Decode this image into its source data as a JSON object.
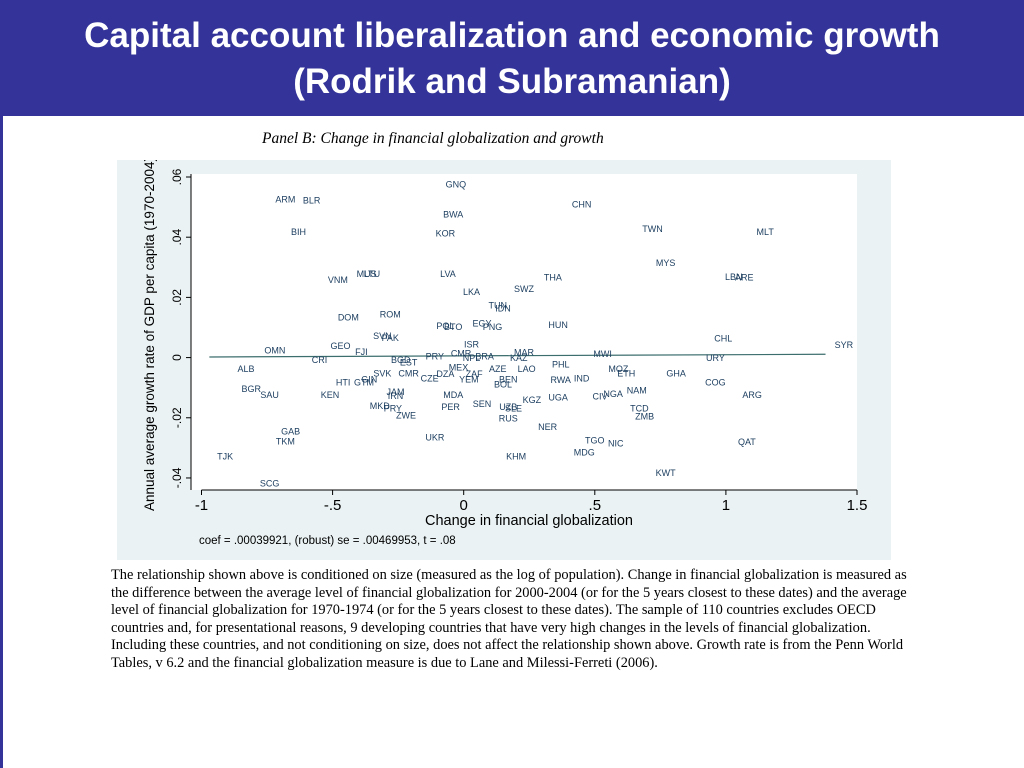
{
  "slide": {
    "title_line1": "Capital account liberalization and economic growth",
    "title_line2": "(Rodrik and Subramanian)"
  },
  "panel_title": "Panel B: Change in financial globalization and growth",
  "caption": "The relationship shown above is conditioned on size (measured as the log of population). Change in financial globalization is measured as the difference between the average level of financial globalization for 2000-2004 (or for the 5 years closest to these dates) and the average level of financial globalization for 1970-1974 (or for the 5 years closest to these dates). The sample of 110 countries excludes OECD countries and, for presentational reasons, 9 developing countries that have very high changes in the levels of financial globalization. Including these countries, and not conditioning on size, does not affect the relationship shown above. Growth rate is from the Penn World Tables, v 6.2 and the financial globalization measure is due to Lane and Milessi-Ferreti (2006).",
  "colors": {
    "header_bg": "#333399",
    "header_text": "#ffffff",
    "plot_bg": "#eaf2f3",
    "fit_line": "#3d6e6e",
    "label": "#1a3c5e"
  },
  "chart_data": {
    "type": "scatter",
    "xlabel": "Change in financial globalization",
    "ylabel": "Annual average growth rate of GDP per capita (1970-2004)",
    "note": "coef = .00039921, (robust) se = .00469953, t = .08",
    "xlim": [
      -1.04,
      1.5
    ],
    "ylim": [
      -0.044,
      0.061
    ],
    "xticks": [
      -1,
      -0.5,
      0,
      0.5,
      1,
      1.5
    ],
    "xtick_labels": [
      "-1",
      "-.5",
      "0",
      ".5",
      "1",
      "1.5"
    ],
    "yticks": [
      -0.04,
      -0.02,
      0,
      0.02,
      0.04,
      0.06
    ],
    "ytick_labels": [
      "-.04",
      "-.02",
      "0",
      ".02",
      ".04",
      ".06"
    ],
    "fit_line": {
      "x": [
        -0.97,
        1.38
      ],
      "y": [
        0.0002,
        0.0011
      ]
    },
    "points": [
      {
        "label": "GNQ",
        "x": -0.03,
        "y": 0.0575
      },
      {
        "label": "ARM",
        "x": -0.68,
        "y": 0.0525
      },
      {
        "label": "BLR",
        "x": -0.58,
        "y": 0.0522
      },
      {
        "label": "CHN",
        "x": 0.45,
        "y": 0.0508
      },
      {
        "label": "BWA",
        "x": -0.04,
        "y": 0.0475
      },
      {
        "label": "TWN",
        "x": 0.72,
        "y": 0.0427
      },
      {
        "label": "BIH",
        "x": -0.63,
        "y": 0.0417
      },
      {
        "label": "KOR",
        "x": -0.07,
        "y": 0.0413
      },
      {
        "label": "MLT",
        "x": 1.15,
        "y": 0.0417
      },
      {
        "label": "MYS",
        "x": 0.77,
        "y": 0.0315
      },
      {
        "label": "MUS",
        "x": -0.37,
        "y": 0.0277
      },
      {
        "label": "LTU",
        "x": -0.35,
        "y": 0.0277
      },
      {
        "label": "LVA",
        "x": -0.06,
        "y": 0.0277
      },
      {
        "label": "VNM",
        "x": -0.48,
        "y": 0.0258
      },
      {
        "label": "THA",
        "x": 0.34,
        "y": 0.0266
      },
      {
        "label": "LBN",
        "x": 1.03,
        "y": 0.0268
      },
      {
        "label": "ARE",
        "x": 1.07,
        "y": 0.0266
      },
      {
        "label": "SWZ",
        "x": 0.23,
        "y": 0.0228
      },
      {
        "label": "LKA",
        "x": 0.03,
        "y": 0.0218
      },
      {
        "label": "TUN",
        "x": 0.13,
        "y": 0.0173
      },
      {
        "label": "IDN",
        "x": 0.15,
        "y": 0.0163
      },
      {
        "label": "ROM",
        "x": -0.28,
        "y": 0.0143
      },
      {
        "label": "DOM",
        "x": -0.44,
        "y": 0.0133
      },
      {
        "label": "EGY",
        "x": 0.07,
        "y": 0.0113
      },
      {
        "label": "POL",
        "x": -0.07,
        "y": 0.0105
      },
      {
        "label": "BTO",
        "x": -0.04,
        "y": 0.0101
      },
      {
        "label": "PNG",
        "x": 0.11,
        "y": 0.0101
      },
      {
        "label": "HUN",
        "x": 0.36,
        "y": 0.0109
      },
      {
        "label": "SVN",
        "x": -0.31,
        "y": 0.0071
      },
      {
        "label": "PAK",
        "x": -0.28,
        "y": 0.0065
      },
      {
        "label": "CHL",
        "x": 0.99,
        "y": 0.0063
      },
      {
        "label": "GEO",
        "x": -0.47,
        "y": 0.0039
      },
      {
        "label": "ISR",
        "x": 0.03,
        "y": 0.0043
      },
      {
        "label": "SYR",
        "x": 1.45,
        "y": 0.0042
      },
      {
        "label": "FJI",
        "x": -0.39,
        "y": 0.0019
      },
      {
        "label": "OMN",
        "x": -0.72,
        "y": 0.0023
      },
      {
        "label": "CMR",
        "x": -0.01,
        "y": 0.0013
      },
      {
        "label": "MAR",
        "x": 0.23,
        "y": 0.0017
      },
      {
        "label": "MWI",
        "x": 0.53,
        "y": 0.0012
      },
      {
        "label": "PRY",
        "x": -0.11,
        "y": 0.0003
      },
      {
        "label": "NPL",
        "x": 0.03,
        "y": -0.0002
      },
      {
        "label": "BRA",
        "x": 0.08,
        "y": 0.0003
      },
      {
        "label": "KAZ",
        "x": 0.21,
        "y": -0.0002
      },
      {
        "label": "URY",
        "x": 0.96,
        "y": -0.0002
      },
      {
        "label": "CRI",
        "x": -0.55,
        "y": -0.0008
      },
      {
        "label": "BGD",
        "x": -0.24,
        "y": -0.0008
      },
      {
        "label": "EST",
        "x": -0.21,
        "y": -0.0017
      },
      {
        "label": "PHL",
        "x": 0.37,
        "y": -0.0023
      },
      {
        "label": "MEX",
        "x": -0.02,
        "y": -0.0033
      },
      {
        "label": "AZE",
        "x": 0.13,
        "y": -0.0038
      },
      {
        "label": "LAO",
        "x": 0.24,
        "y": -0.0038
      },
      {
        "label": "MOZ",
        "x": 0.59,
        "y": -0.0038
      },
      {
        "label": "ALB",
        "x": -0.83,
        "y": -0.0038
      },
      {
        "label": "SVK",
        "x": -0.31,
        "y": -0.0053
      },
      {
        "label": "CMR",
        "x": -0.21,
        "y": -0.0053
      },
      {
        "label": "DZA",
        "x": -0.07,
        "y": -0.0055
      },
      {
        "label": "ZAF",
        "x": 0.04,
        "y": -0.0055
      },
      {
        "label": "ETH",
        "x": 0.62,
        "y": -0.0053
      },
      {
        "label": "GHA",
        "x": 0.81,
        "y": -0.0053
      },
      {
        "label": "CZE",
        "x": -0.13,
        "y": -0.0069
      },
      {
        "label": "YEM",
        "x": 0.02,
        "y": -0.0073
      },
      {
        "label": "BEN",
        "x": 0.17,
        "y": -0.0073
      },
      {
        "label": "IND",
        "x": 0.45,
        "y": -0.0069
      },
      {
        "label": "RWA",
        "x": 0.37,
        "y": -0.0075
      },
      {
        "label": "GIN",
        "x": -0.36,
        "y": -0.0073
      },
      {
        "label": "HTI",
        "x": -0.46,
        "y": -0.0083
      },
      {
        "label": "GTM",
        "x": -0.38,
        "y": -0.0083
      },
      {
        "label": "BOL",
        "x": 0.15,
        "y": -0.0089
      },
      {
        "label": "COG",
        "x": 0.96,
        "y": -0.0083
      },
      {
        "label": "BGR",
        "x": -0.81,
        "y": -0.0105
      },
      {
        "label": "SAU",
        "x": -0.74,
        "y": -0.0125
      },
      {
        "label": "KEN",
        "x": -0.51,
        "y": -0.0125
      },
      {
        "label": "JAM",
        "x": -0.26,
        "y": -0.0115
      },
      {
        "label": "IRN",
        "x": -0.26,
        "y": -0.0127
      },
      {
        "label": "MDA",
        "x": -0.04,
        "y": -0.0125
      },
      {
        "label": "NAM",
        "x": 0.66,
        "y": -0.0109
      },
      {
        "label": "NGA",
        "x": 0.57,
        "y": -0.0121
      },
      {
        "label": "CIV",
        "x": 0.52,
        "y": -0.0129
      },
      {
        "label": "ARG",
        "x": 1.1,
        "y": -0.0125
      },
      {
        "label": "KGZ",
        "x": 0.26,
        "y": -0.0141
      },
      {
        "label": "UGA",
        "x": 0.36,
        "y": -0.0133
      },
      {
        "label": "MKD",
        "x": -0.32,
        "y": -0.0161
      },
      {
        "label": "PRY",
        "x": -0.27,
        "y": -0.0169
      },
      {
        "label": "PER",
        "x": -0.05,
        "y": -0.0165
      },
      {
        "label": "SEN",
        "x": 0.07,
        "y": -0.0155
      },
      {
        "label": "UZB",
        "x": 0.17,
        "y": -0.0165
      },
      {
        "label": "SLE",
        "x": 0.19,
        "y": -0.0169
      },
      {
        "label": "TCD",
        "x": 0.67,
        "y": -0.0169
      },
      {
        "label": "ZMB",
        "x": 0.69,
        "y": -0.0195
      },
      {
        "label": "ZWE",
        "x": -0.22,
        "y": -0.0193
      },
      {
        "label": "RUS",
        "x": 0.17,
        "y": -0.0203
      },
      {
        "label": "NER",
        "x": 0.32,
        "y": -0.0231
      },
      {
        "label": "GAB",
        "x": -0.66,
        "y": -0.0245
      },
      {
        "label": "UKR",
        "x": -0.11,
        "y": -0.0265
      },
      {
        "label": "TKM",
        "x": -0.68,
        "y": -0.0279
      },
      {
        "label": "TGO",
        "x": 0.5,
        "y": -0.0275
      },
      {
        "label": "NIC",
        "x": 0.58,
        "y": -0.0285
      },
      {
        "label": "QAT",
        "x": 1.08,
        "y": -0.0281
      },
      {
        "label": "MDG",
        "x": 0.46,
        "y": -0.0315
      },
      {
        "label": "KHM",
        "x": 0.2,
        "y": -0.0329
      },
      {
        "label": "TJK",
        "x": -0.91,
        "y": -0.0329
      },
      {
        "label": "KWT",
        "x": 0.77,
        "y": -0.0383
      },
      {
        "label": "SCG",
        "x": -0.74,
        "y": -0.0419
      }
    ]
  }
}
